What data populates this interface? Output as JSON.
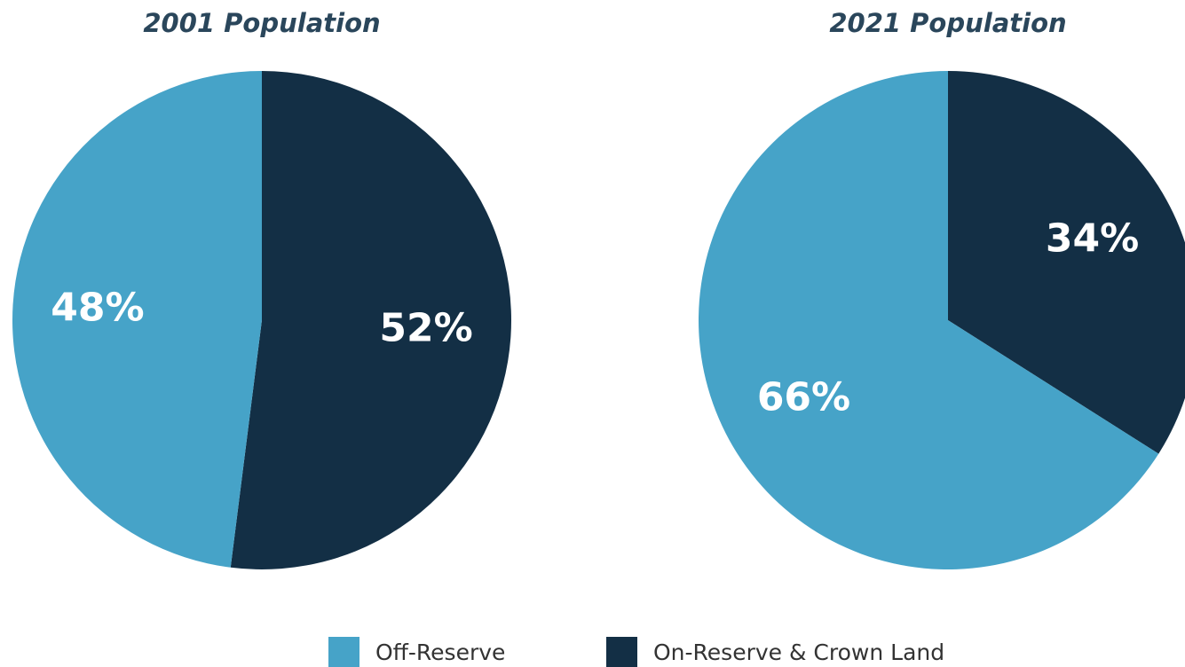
{
  "chart_data": [
    {
      "type": "pie",
      "title": "2001 Population",
      "values": [
        48,
        52
      ],
      "value_labels": [
        "48%",
        "52%"
      ]
    },
    {
      "type": "pie",
      "title": "2021 Population",
      "values": [
        66,
        34
      ],
      "value_labels": [
        "66%",
        "34%"
      ]
    }
  ],
  "legend": {
    "items": [
      {
        "name": "Off-Reserve",
        "color": "#46a3c8"
      },
      {
        "name": "On-Reserve & Crown Land",
        "color": "#132f45"
      }
    ]
  }
}
